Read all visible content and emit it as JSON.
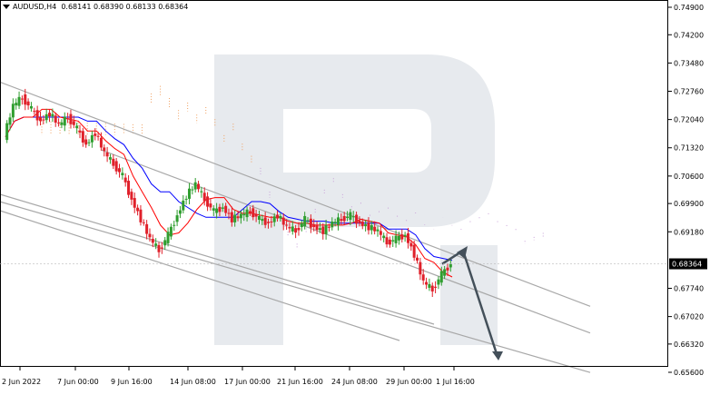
{
  "header": {
    "symbol": "AUDUSD,H4",
    "open": "0.68141",
    "high": "0.68390",
    "low": "0.68133",
    "close": "0.68364"
  },
  "chart_data": {
    "type": "candlestick",
    "title": "AUDUSD,H4",
    "ylim": [
      0.656,
      0.749
    ],
    "y_ticks": [
      "0.74900",
      "0.74200",
      "0.73480",
      "0.72760",
      "0.72040",
      "0.71320",
      "0.70600",
      "0.69900",
      "0.69180",
      "0.68364",
      "0.67740",
      "0.67020",
      "0.66320",
      "0.65600"
    ],
    "x_ticks": [
      "2 Jun 2022",
      "7 Jun 00:00",
      "9 Jun 16:00",
      "14 Jun 08:00",
      "17 Jun 00:00",
      "21 Jun 16:00",
      "24 Jun 08:00",
      "29 Jun 00:00",
      "1 Jul 16:00"
    ],
    "current_price": "0.68364",
    "close_path": [
      0.716,
      0.724,
      0.726,
      0.723,
      0.72,
      0.722,
      0.719,
      0.721,
      0.718,
      0.714,
      0.717,
      0.712,
      0.709,
      0.706,
      0.7,
      0.695,
      0.69,
      0.687,
      0.691,
      0.696,
      0.701,
      0.704,
      0.7,
      0.697,
      0.698,
      0.695,
      0.696,
      0.697,
      0.695,
      0.694,
      0.696,
      0.693,
      0.692,
      0.695,
      0.693,
      0.692,
      0.694,
      0.695,
      0.696,
      0.694,
      0.693,
      0.692,
      0.689,
      0.69,
      0.691,
      0.686,
      0.679,
      0.677,
      0.681,
      0.6836
    ],
    "trend_lines": [
      {
        "name": "channel-upper",
        "from": [
          "2 Jun 2022",
          0.728
        ],
        "to": [
          "1 Jul 16:00",
          0.686
        ]
      },
      {
        "name": "channel-mid",
        "from": [
          "9 Jun 16:00",
          0.71
        ],
        "to": [
          "1 Jul 16:00",
          0.679
        ]
      },
      {
        "name": "channel-lower",
        "from": [
          "2 Jun 2022",
          0.698
        ],
        "to": [
          "1 Jul 16:00",
          0.666
        ]
      }
    ],
    "forecast_path": [
      0.6836,
      0.687,
      0.66
    ],
    "colors": {
      "bull": "#2f9e2f",
      "bear": "#e0202a",
      "kijun": "#0000ff",
      "tenkan": "#ff0000",
      "cloud_bull": "#f0a060",
      "cloud_bear": "#c8a0d8",
      "trend": "#a8a8a8",
      "arrow": "#44505a",
      "watermark": "#e7eaee"
    }
  }
}
